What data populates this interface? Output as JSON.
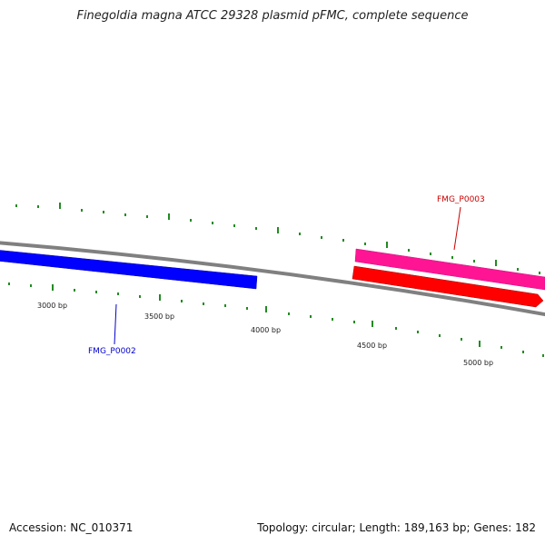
{
  "title": "Finegoldia magna ATCC 29328 plasmid pFMC, complete sequence",
  "footer": {
    "accession": "Accession: NC_010371",
    "summary": "Topology: circular; Length: 189,163 bp; Genes: 182"
  },
  "scale_labels": [
    "3000 bp",
    "3500 bp",
    "4000 bp",
    "4500 bp",
    "5000 bp"
  ],
  "genes": [
    {
      "name": "FMG_P0002",
      "strand": "forward",
      "color": "#0000ff",
      "label_color": "#0000cc"
    },
    {
      "name": "FMG_P0003",
      "strand": "forward",
      "color": "#ff1493",
      "label_color": "#cc0000"
    },
    {
      "name": "",
      "strand": "reverse",
      "color": "#ff0000"
    }
  ],
  "colors": {
    "backbone": "#808080",
    "ticks": "#228b22"
  }
}
